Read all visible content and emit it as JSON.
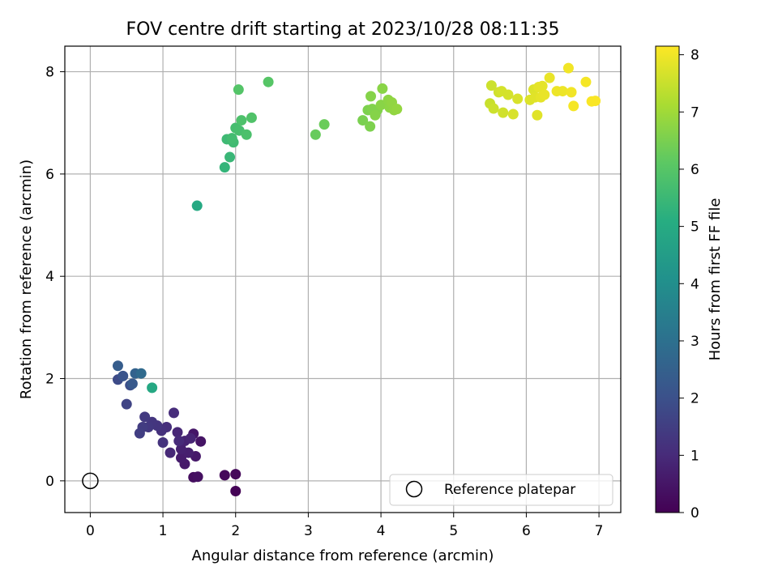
{
  "chart_data": {
    "type": "scatter",
    "title": "FOV centre drift starting at 2023/10/28 08:11:35",
    "xlabel": "Angular distance from reference (arcmin)",
    "ylabel": "Rotation from reference (arcmin)",
    "xlim": [
      -0.35,
      7.3
    ],
    "ylim": [
      -0.62,
      8.5
    ],
    "xticks": [
      0,
      1,
      2,
      3,
      4,
      5,
      6,
      7
    ],
    "yticks": [
      0,
      2,
      4,
      6,
      8
    ],
    "grid": true,
    "legend": {
      "placement": "lower-right",
      "entries": [
        "Reference platepar"
      ]
    },
    "reference_point": {
      "x": 0,
      "y": 0,
      "label": "Reference platepar"
    },
    "colorbar": {
      "label": "Hours from first FF file",
      "colormap": "viridis",
      "range": [
        0,
        8.15
      ],
      "ticks": [
        0,
        1,
        2,
        3,
        4,
        5,
        6,
        7,
        8
      ]
    },
    "points": [
      {
        "x": 2.0,
        "y": -0.2,
        "h": 0.05
      },
      {
        "x": 1.85,
        "y": 0.11,
        "h": 0.15
      },
      {
        "x": 2.0,
        "y": 0.13,
        "h": 0.2
      },
      {
        "x": 1.42,
        "y": 0.07,
        "h": 0.3
      },
      {
        "x": 1.48,
        "y": 0.08,
        "h": 0.35
      },
      {
        "x": 1.52,
        "y": 0.77,
        "h": 0.45
      },
      {
        "x": 1.42,
        "y": 0.92,
        "h": 0.5
      },
      {
        "x": 1.45,
        "y": 0.48,
        "h": 0.55
      },
      {
        "x": 1.3,
        "y": 0.33,
        "h": 0.6
      },
      {
        "x": 1.25,
        "y": 0.45,
        "h": 0.65
      },
      {
        "x": 1.35,
        "y": 0.55,
        "h": 0.7
      },
      {
        "x": 1.25,
        "y": 0.62,
        "h": 0.75
      },
      {
        "x": 1.3,
        "y": 0.78,
        "h": 0.8
      },
      {
        "x": 1.38,
        "y": 0.83,
        "h": 0.85
      },
      {
        "x": 1.2,
        "y": 0.95,
        "h": 0.9
      },
      {
        "x": 1.1,
        "y": 0.55,
        "h": 0.95
      },
      {
        "x": 1.22,
        "y": 0.78,
        "h": 1.0
      },
      {
        "x": 1.15,
        "y": 1.33,
        "h": 1.05
      },
      {
        "x": 1.05,
        "y": 1.05,
        "h": 1.1
      },
      {
        "x": 0.98,
        "y": 0.98,
        "h": 1.15
      },
      {
        "x": 1.0,
        "y": 0.75,
        "h": 1.2
      },
      {
        "x": 0.92,
        "y": 1.08,
        "h": 1.25
      },
      {
        "x": 0.85,
        "y": 1.15,
        "h": 1.3
      },
      {
        "x": 0.8,
        "y": 1.05,
        "h": 1.35
      },
      {
        "x": 0.75,
        "y": 1.25,
        "h": 1.4
      },
      {
        "x": 0.72,
        "y": 1.05,
        "h": 1.45
      },
      {
        "x": 0.68,
        "y": 0.93,
        "h": 1.5
      },
      {
        "x": 0.5,
        "y": 1.5,
        "h": 1.65
      },
      {
        "x": 0.38,
        "y": 1.98,
        "h": 1.85
      },
      {
        "x": 0.55,
        "y": 1.87,
        "h": 1.95
      },
      {
        "x": 0.45,
        "y": 2.05,
        "h": 2.1
      },
      {
        "x": 0.58,
        "y": 1.9,
        "h": 2.25
      },
      {
        "x": 0.38,
        "y": 2.25,
        "h": 2.4
      },
      {
        "x": 0.62,
        "y": 2.1,
        "h": 2.55
      },
      {
        "x": 0.7,
        "y": 2.1,
        "h": 2.8
      },
      {
        "x": 0.85,
        "y": 1.82,
        "h": 4.9
      },
      {
        "x": 1.47,
        "y": 5.38,
        "h": 4.95
      },
      {
        "x": 1.85,
        "y": 6.13,
        "h": 5.35
      },
      {
        "x": 1.92,
        "y": 6.33,
        "h": 5.45
      },
      {
        "x": 1.88,
        "y": 6.68,
        "h": 5.55
      },
      {
        "x": 1.97,
        "y": 6.62,
        "h": 5.6
      },
      {
        "x": 1.95,
        "y": 6.7,
        "h": 5.65
      },
      {
        "x": 2.0,
        "y": 6.9,
        "h": 5.7
      },
      {
        "x": 2.05,
        "y": 6.85,
        "h": 5.75
      },
      {
        "x": 2.15,
        "y": 6.77,
        "h": 5.8
      },
      {
        "x": 2.08,
        "y": 7.05,
        "h": 5.85
      },
      {
        "x": 2.22,
        "y": 7.1,
        "h": 5.9
      },
      {
        "x": 2.04,
        "y": 7.65,
        "h": 5.95
      },
      {
        "x": 2.45,
        "y": 7.8,
        "h": 6.0
      },
      {
        "x": 3.1,
        "y": 6.77,
        "h": 6.25
      },
      {
        "x": 3.22,
        "y": 6.97,
        "h": 6.3
      },
      {
        "x": 3.75,
        "y": 7.05,
        "h": 6.5
      },
      {
        "x": 3.82,
        "y": 7.25,
        "h": 6.55
      },
      {
        "x": 3.85,
        "y": 6.93,
        "h": 6.55
      },
      {
        "x": 3.88,
        "y": 7.27,
        "h": 6.6
      },
      {
        "x": 3.95,
        "y": 7.25,
        "h": 6.6
      },
      {
        "x": 3.92,
        "y": 7.15,
        "h": 6.65
      },
      {
        "x": 3.86,
        "y": 7.52,
        "h": 6.65
      },
      {
        "x": 4.0,
        "y": 7.35,
        "h": 6.7
      },
      {
        "x": 4.02,
        "y": 7.67,
        "h": 6.7
      },
      {
        "x": 4.1,
        "y": 7.45,
        "h": 6.75
      },
      {
        "x": 4.12,
        "y": 7.3,
        "h": 6.75
      },
      {
        "x": 4.15,
        "y": 7.4,
        "h": 6.8
      },
      {
        "x": 4.18,
        "y": 7.25,
        "h": 6.8
      },
      {
        "x": 4.22,
        "y": 7.27,
        "h": 6.85
      },
      {
        "x": 5.5,
        "y": 7.38,
        "h": 7.5
      },
      {
        "x": 5.52,
        "y": 7.73,
        "h": 7.55
      },
      {
        "x": 5.55,
        "y": 7.28,
        "h": 7.55
      },
      {
        "x": 5.62,
        "y": 7.6,
        "h": 7.6
      },
      {
        "x": 5.68,
        "y": 7.2,
        "h": 7.6
      },
      {
        "x": 5.66,
        "y": 7.62,
        "h": 7.65
      },
      {
        "x": 5.75,
        "y": 7.55,
        "h": 7.65
      },
      {
        "x": 5.82,
        "y": 7.17,
        "h": 7.7
      },
      {
        "x": 5.88,
        "y": 7.47,
        "h": 7.7
      },
      {
        "x": 6.05,
        "y": 7.45,
        "h": 7.75
      },
      {
        "x": 6.1,
        "y": 7.65,
        "h": 7.75
      },
      {
        "x": 6.12,
        "y": 7.5,
        "h": 7.8
      },
      {
        "x": 6.15,
        "y": 7.15,
        "h": 7.8
      },
      {
        "x": 6.17,
        "y": 7.7,
        "h": 7.85
      },
      {
        "x": 6.2,
        "y": 7.5,
        "h": 7.85
      },
      {
        "x": 6.22,
        "y": 7.72,
        "h": 7.85
      },
      {
        "x": 6.25,
        "y": 7.55,
        "h": 7.9
      },
      {
        "x": 6.32,
        "y": 7.88,
        "h": 7.9
      },
      {
        "x": 6.42,
        "y": 7.62,
        "h": 7.95
      },
      {
        "x": 6.5,
        "y": 7.62,
        "h": 7.95
      },
      {
        "x": 6.58,
        "y": 8.07,
        "h": 8.0
      },
      {
        "x": 6.62,
        "y": 7.6,
        "h": 8.0
      },
      {
        "x": 6.65,
        "y": 7.33,
        "h": 8.05
      },
      {
        "x": 6.82,
        "y": 7.8,
        "h": 8.05
      },
      {
        "x": 6.9,
        "y": 7.42,
        "h": 8.1
      },
      {
        "x": 6.95,
        "y": 7.43,
        "h": 8.1
      }
    ]
  }
}
